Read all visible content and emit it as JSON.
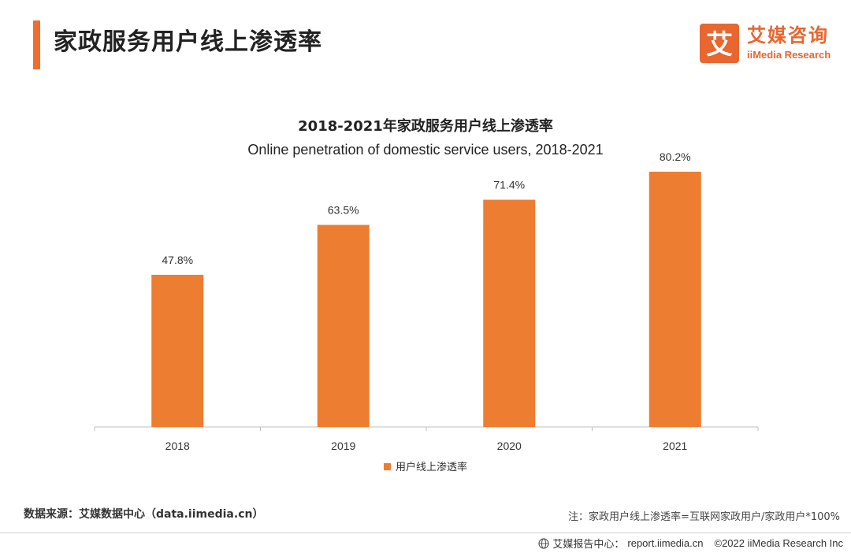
{
  "header": {
    "title": "家政服务用户线上渗透率"
  },
  "logo": {
    "mark_char": "艾",
    "cn": "艾媒咨询",
    "en": "iiMedia Research"
  },
  "colors": {
    "accent": "#ED6E2F",
    "bar": "#ED7D31",
    "logo": "#E8662F"
  },
  "chart_data": {
    "type": "bar",
    "title": "2018-2021年家政服务用户线上渗透率",
    "subtitle": "Online penetration of domestic service users, 2018-2021",
    "categories": [
      "2018",
      "2019",
      "2020",
      "2021"
    ],
    "series": [
      {
        "name": "用户线上渗透率",
        "values": [
          47.8,
          63.5,
          71.4,
          80.2
        ],
        "labels": [
          "47.8%",
          "63.5%",
          "71.4%",
          "80.2%"
        ]
      }
    ],
    "ylim": [
      0,
      100
    ],
    "xlabel": "",
    "ylabel": "",
    "grid": false,
    "legend_position": "bottom"
  },
  "source": "数据来源：艾媒数据中心（data.iimedia.cn）",
  "note": "注：家政用户线上渗透率=互联网家政用户/家政用户*100%",
  "footer": {
    "center": "艾媒报告中心：",
    "url": "report.iimedia.cn",
    "copyright": "©2022  iiMedia Research  Inc"
  }
}
